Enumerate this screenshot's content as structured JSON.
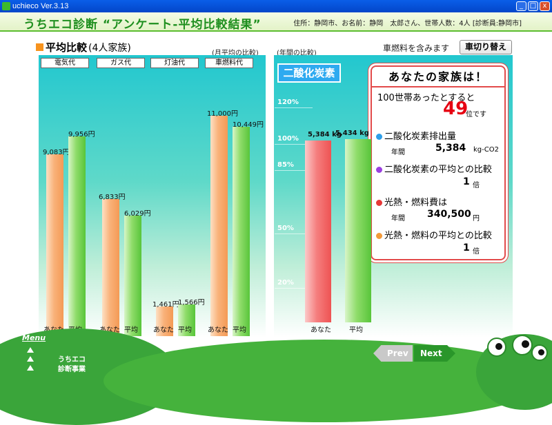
{
  "window": {
    "title": "uchieco Ver.3.13",
    "min": "_",
    "max": "□",
    "close": "x"
  },
  "header": {
    "app_title": "うちエコ診断 “アンケート-平均比較結果”",
    "user_info": "住所：静岡市、お名前：静岡　太郎さん、世帯人数：4人 [診断員:静岡市]"
  },
  "left_panel": {
    "title": "平均比較",
    "subtitle": "(4人家族)",
    "note": "(月平均の比較)",
    "categories": [
      "電気代",
      "ガス代",
      "灯油代",
      "車燃料代"
    ],
    "x_labels": [
      "あなた",
      "平均"
    ]
  },
  "right_panel": {
    "note": "(年間の比較)",
    "badge": "二酸化炭素",
    "car_fuel_label": "車燃料を含みます",
    "toggle_button": "車切り替え",
    "pct_labels": [
      "120%",
      "100%",
      "85%",
      "50%",
      "20%"
    ],
    "x_labels": [
      "あなた",
      "平均"
    ]
  },
  "chart_data": [
    {
      "type": "bar",
      "categories": [
        "電気代",
        "ガス代",
        "灯油代",
        "車燃料代"
      ],
      "series": [
        {
          "name": "あなた",
          "values": [
            9083,
            6833,
            1461,
            11000
          ],
          "labels": [
            "9,083円",
            "6,833円",
            "1,461円",
            "11,000円"
          ]
        },
        {
          "name": "平均",
          "values": [
            9956,
            6029,
            1566,
            10449
          ],
          "labels": [
            "9,956円",
            "6,029円",
            "1,566円",
            "10,449円"
          ]
        }
      ]
    },
    {
      "type": "bar",
      "categories": [
        "あなた",
        "平均"
      ],
      "values": [
        5384,
        5434
      ],
      "labels": [
        "5,384 kg",
        "5,434 kg"
      ]
    }
  ],
  "result_card": {
    "heading": "あなたの家族は！",
    "rank_text": "100世帯あったとすると",
    "rank_value": "49",
    "rank_suffix": "位です",
    "co2_title": "二酸化炭素排出量",
    "co2_period": "年間",
    "co2_value": "5,384",
    "co2_unit": "kg-CO2",
    "co2_compare_title": "二酸化炭素の平均との比較",
    "co2_compare_value": "1",
    "co2_compare_unit": "倍",
    "cost_title": "光熱・燃料費は",
    "cost_period": "年間",
    "cost_value": "340,500",
    "cost_unit": "円",
    "cost_compare_title": "光熱・燃料の平均との比較",
    "cost_compare_value": "1",
    "cost_compare_unit": "倍",
    "colors": {
      "co2": "#2e9ee8",
      "co2_compare": "#9b3fe0",
      "cost": "#e63838",
      "cost_compare": "#f39a3a"
    }
  },
  "footer": {
    "menu": "Menu",
    "logo_line1": "うちエコ",
    "logo_line2": "診断事業",
    "prev": "Prev",
    "next": "Next"
  }
}
